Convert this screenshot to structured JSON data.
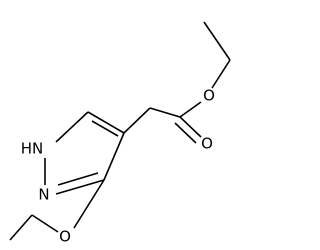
{
  "atoms": [
    {
      "label": "HN"
    },
    {
      "label": "N"
    },
    {
      "label": "O"
    },
    {
      "label": "O"
    },
    {
      "label": "O"
    }
  ]
}
